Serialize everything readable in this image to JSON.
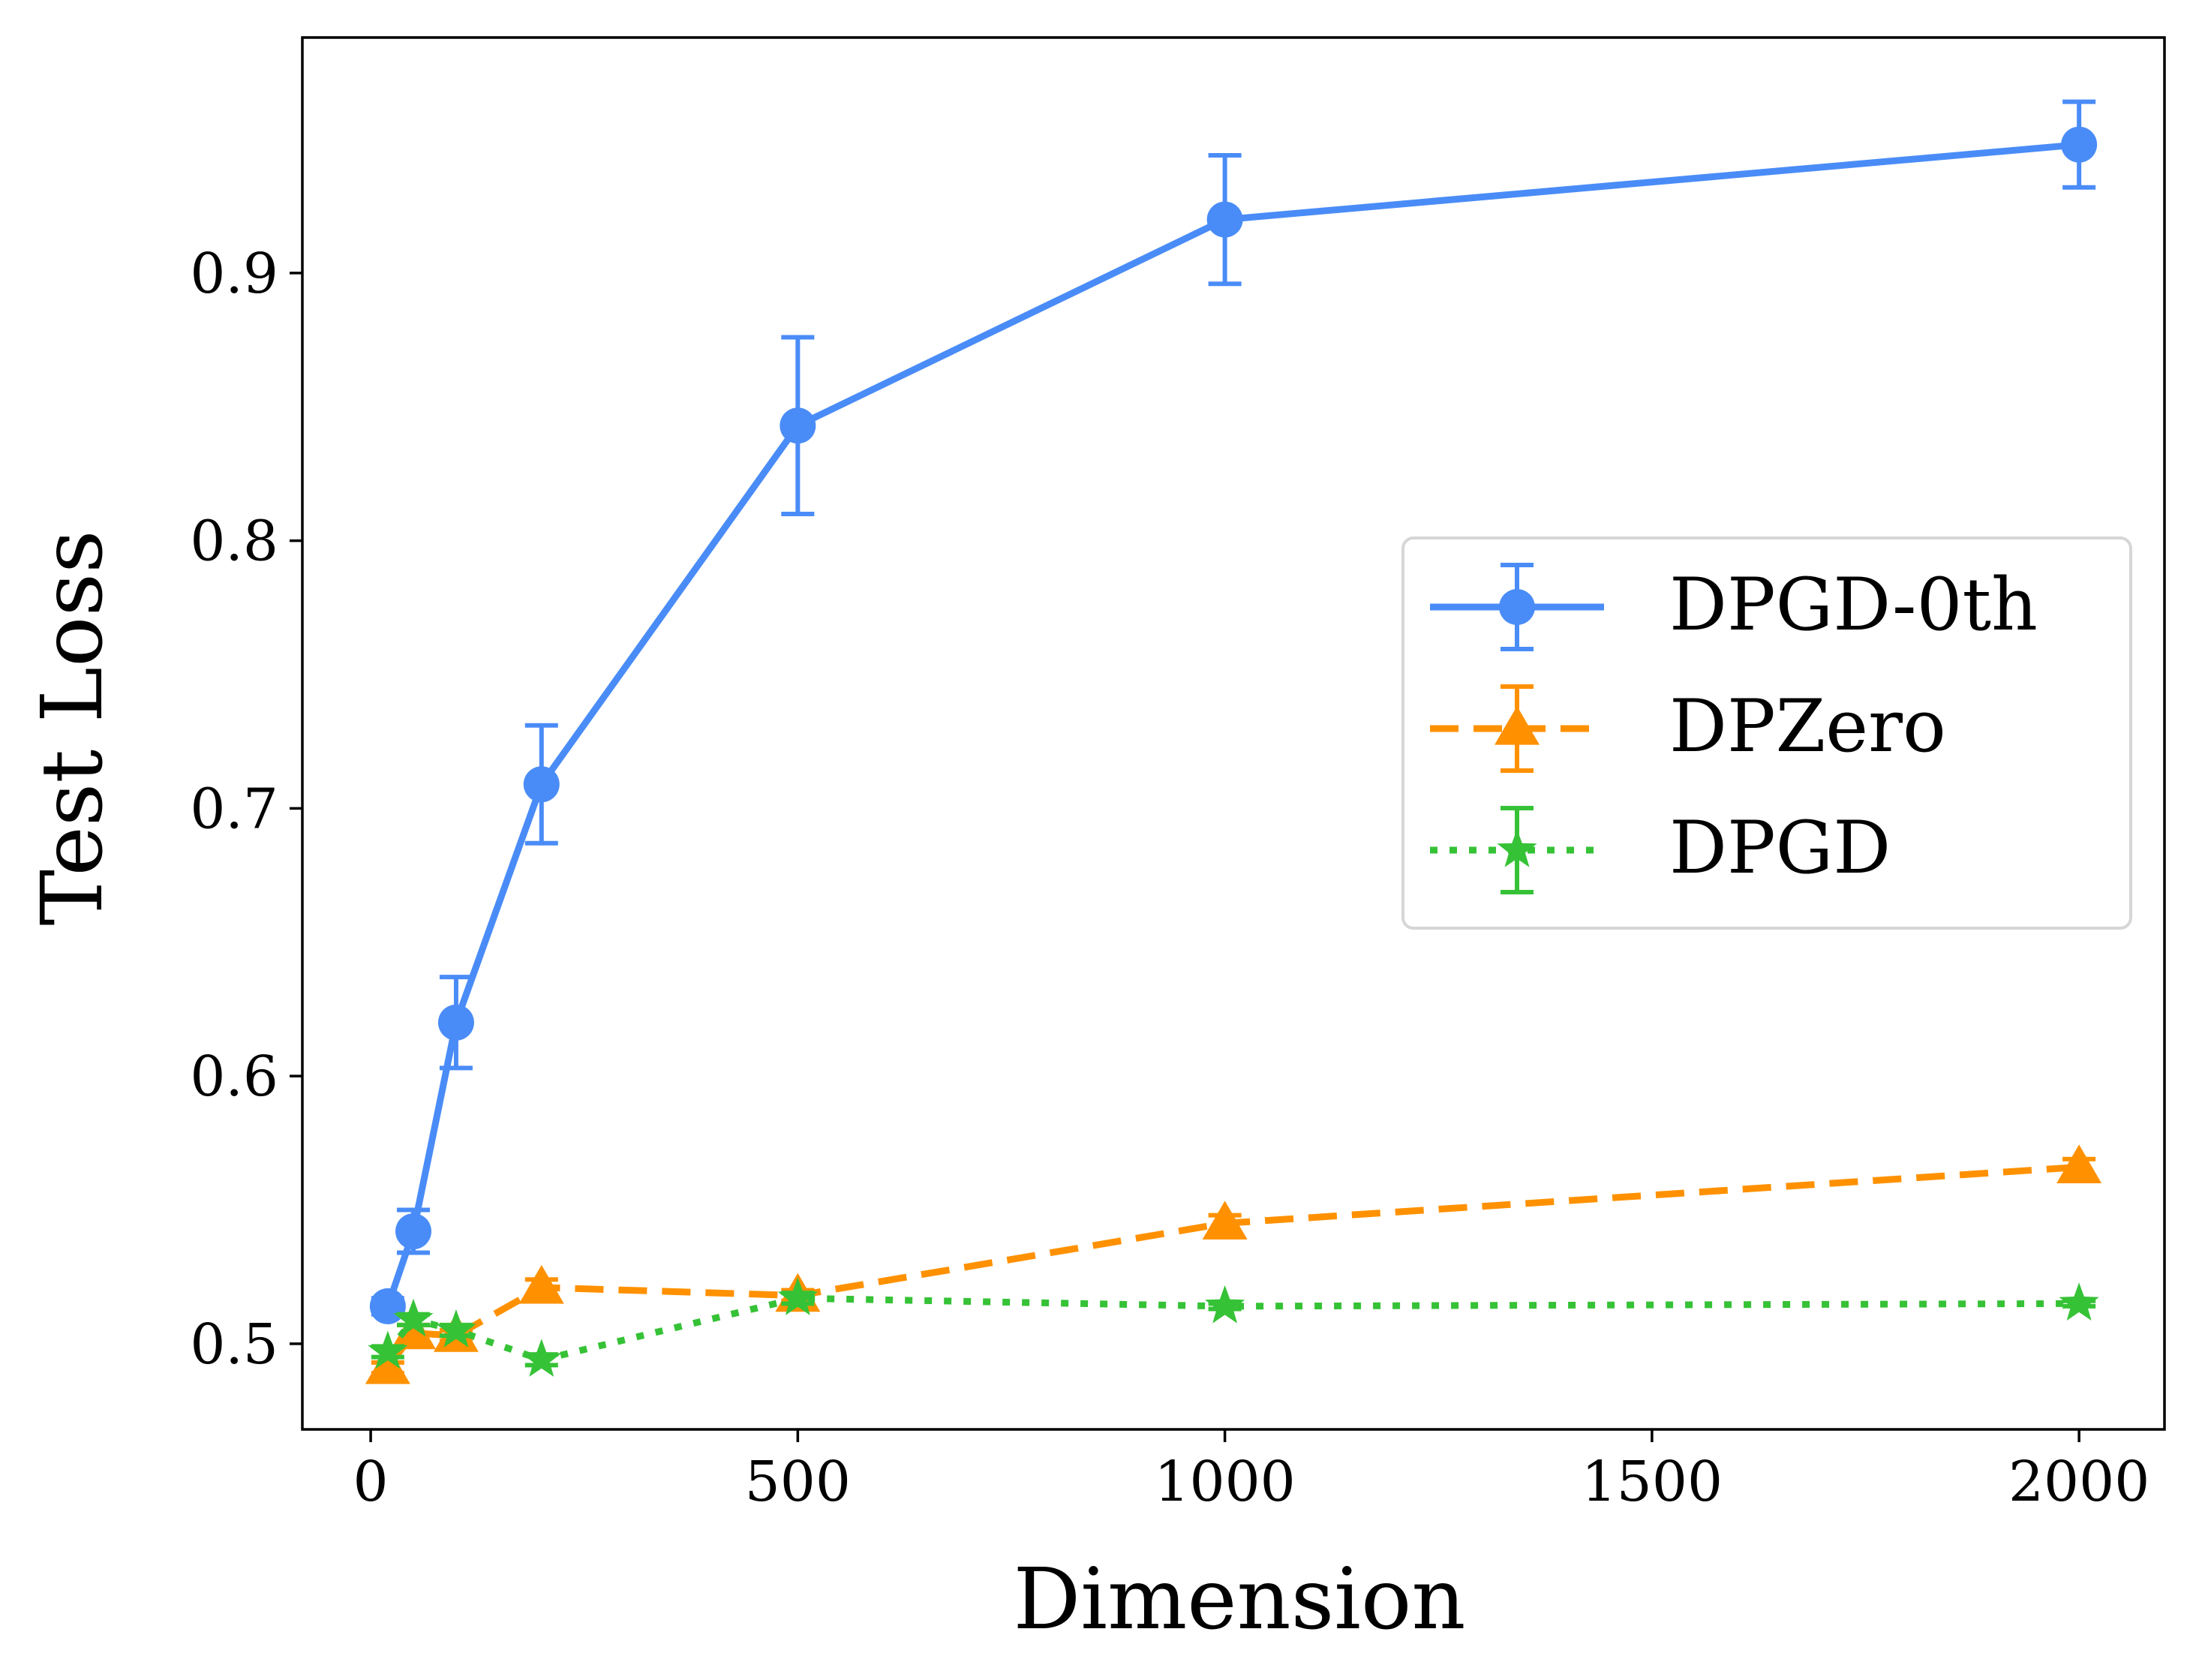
{
  "chart_data": {
    "type": "line",
    "title": "",
    "xlabel": "Dimension",
    "ylabel": "Test Loss",
    "xlim": [
      -80,
      2100
    ],
    "ylim": [
      0.468,
      0.988
    ],
    "x_ticks": [
      0,
      500,
      1000,
      1500,
      2000
    ],
    "x_tick_labels": [
      "0",
      "500",
      "1000",
      "1500",
      "2000"
    ],
    "y_ticks": [
      0.5,
      0.6,
      0.7,
      0.8,
      0.9
    ],
    "y_tick_labels": [
      "0.5",
      "0.6",
      "0.7",
      "0.8",
      "0.9"
    ],
    "grid": false,
    "legend_position": "center-right",
    "x": [
      20,
      50,
      100,
      200,
      500,
      1000,
      2000
    ],
    "series": [
      {
        "name": "DPGD-0th",
        "color": "#4a8cf7",
        "line_style": "solid",
        "marker": "circle",
        "values": [
          0.514,
          0.542,
          0.62,
          0.709,
          0.843,
          0.92,
          0.948
        ],
        "errors": [
          0.003,
          0.008,
          0.017,
          0.022,
          0.033,
          0.024,
          0.016
        ]
      },
      {
        "name": "DPZero",
        "color": "#ff9100",
        "line_style": "dashed",
        "marker": "triangle",
        "values": [
          0.491,
          0.504,
          0.503,
          0.521,
          0.518,
          0.545,
          0.566
        ],
        "errors": [
          0.002,
          0.003,
          0.002,
          0.003,
          0.002,
          0.003,
          0.003
        ]
      },
      {
        "name": "DPGD",
        "color": "#36c236",
        "line_style": "dotted",
        "marker": "star",
        "values": [
          0.497,
          0.509,
          0.505,
          0.494,
          0.517,
          0.514,
          0.515
        ],
        "errors": [
          0.002,
          0.002,
          0.002,
          0.002,
          0.002,
          0.001,
          0.001
        ]
      }
    ]
  }
}
